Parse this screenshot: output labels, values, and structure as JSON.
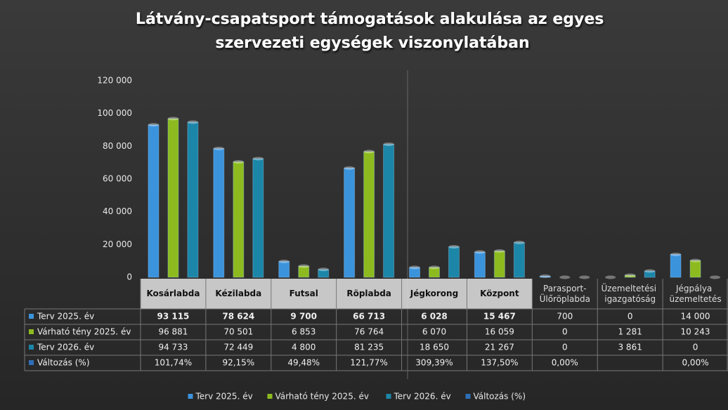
{
  "chart_data": {
    "type": "bar",
    "title": "Látvány-csapatsport támogatások alakulása az egyes szervezeti egységek viszonylatában",
    "categories": [
      "Kosárlabda",
      "Kézilabda",
      "Futsal",
      "Röplabda",
      "Jégkorong",
      "Központ",
      "Parasport-Ülőröplabda",
      "Üzemeltetési igazgatóság",
      "Jégpálya üzemeltetés"
    ],
    "series": [
      {
        "name": "Terv 2025. év",
        "color": "#3b93dc",
        "values": [
          93115,
          78624,
          9700,
          66713,
          6028,
          15467,
          700,
          0,
          14000
        ],
        "value_labels": [
          "93 115",
          "78 624",
          "9 700",
          "66 713",
          "6 028",
          "15 467",
          "700",
          "0",
          "14 000"
        ]
      },
      {
        "name": "Várható tény 2025. év",
        "color": "#8dbb1f",
        "values": [
          96881,
          70501,
          6853,
          76764,
          6070,
          16059,
          0,
          1281,
          10243
        ],
        "value_labels": [
          "96 881",
          "70 501",
          "6 853",
          "76 764",
          "6 070",
          "16 059",
          "0",
          "1 281",
          "10 243"
        ]
      },
      {
        "name": "Terv 2026. év",
        "color": "#1b86a8",
        "values": [
          94733,
          72449,
          4800,
          81235,
          18650,
          21267,
          0,
          3861,
          0
        ],
        "value_labels": [
          "94 733",
          "72 449",
          "4 800",
          "81 235",
          "18 650",
          "21 267",
          "0",
          "3 861",
          "0"
        ]
      },
      {
        "name": "Változás (%)",
        "color": "#2f6fb8",
        "axis": "none",
        "values": [
          101.74,
          92.15,
          49.48,
          121.77,
          309.39,
          137.5,
          0,
          null,
          0
        ],
        "value_labels": [
          "101,74%",
          "92,15%",
          "49,48%",
          "121,77%",
          "309,39%",
          "137,50%",
          "0,00%",
          null,
          "0,00%"
        ]
      }
    ],
    "ylim": [
      0,
      120000
    ],
    "yticks": [
      0,
      {
        "value": 20000,
        "label": "20 000"
      },
      {
        "value": 40000,
        "label": "40 000"
      },
      {
        "value": 60000,
        "label": "60 000"
      },
      {
        "value": 80000,
        "label": "80 000"
      },
      {
        "value": 100000,
        "label": "100 000"
      },
      {
        "value": 120000,
        "label": "120 000"
      }
    ],
    "grid": false,
    "legend": "bottom"
  }
}
